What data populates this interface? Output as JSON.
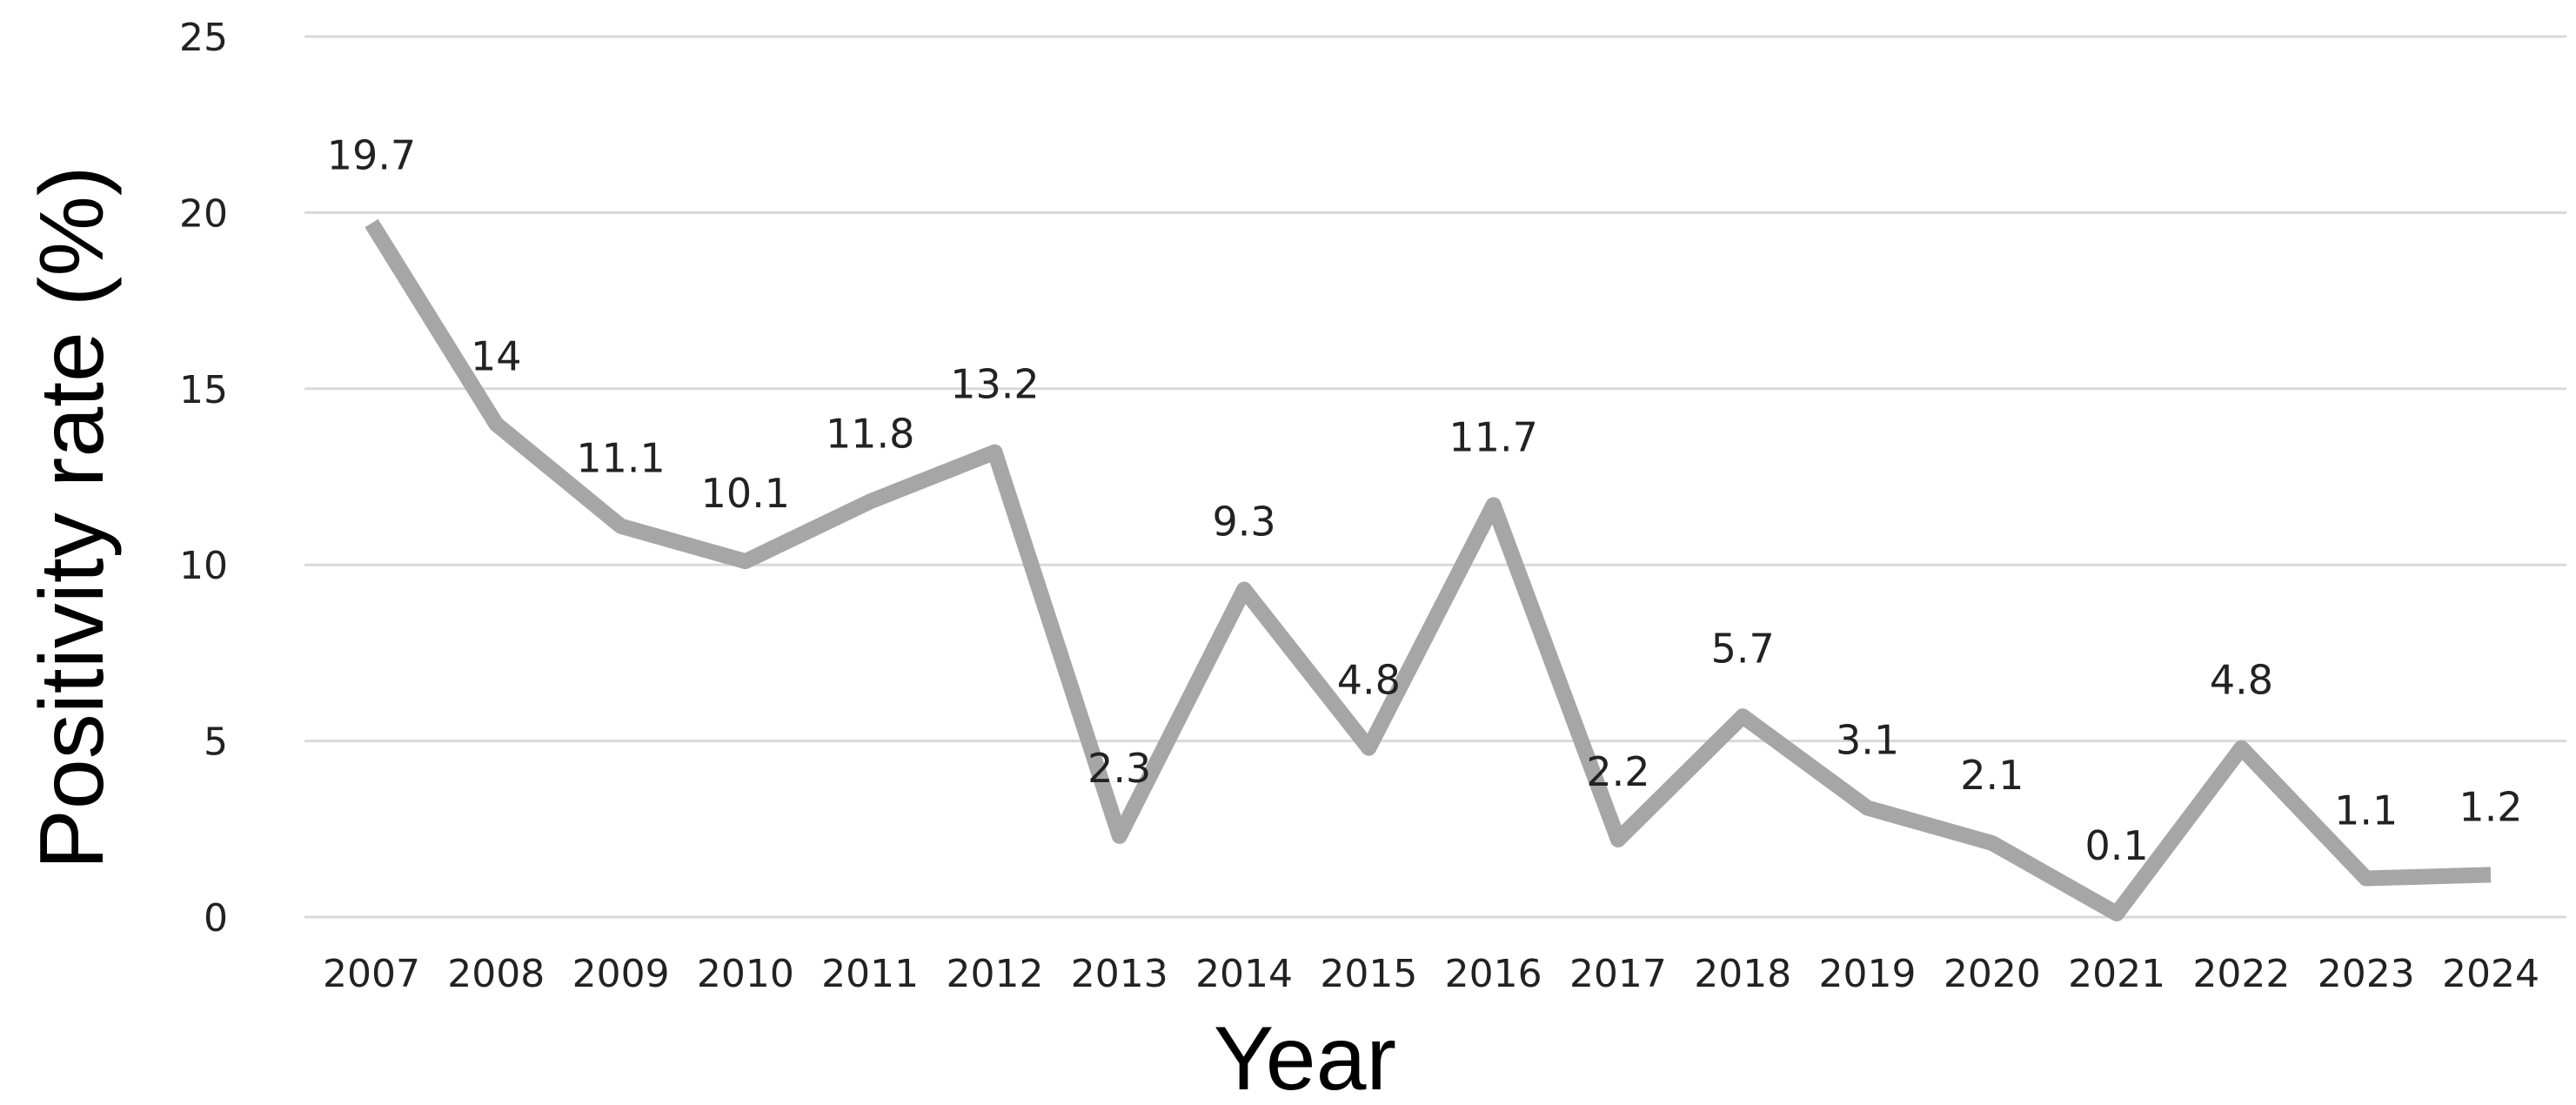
{
  "chart_data": {
    "type": "line",
    "title": "",
    "xlabel": "Year",
    "ylabel": "Positivity rate (%)",
    "ylim": [
      0,
      25
    ],
    "yticks": [
      0,
      5,
      10,
      15,
      20,
      25
    ],
    "grid": "horizontal",
    "legend": "none",
    "line_color": "#a6a6a6",
    "grid_color": "#d9d9d9",
    "categories": [
      "2007",
      "2008",
      "2009",
      "2010",
      "2011",
      "2012",
      "2013",
      "2014",
      "2015",
      "2016",
      "2017",
      "2018",
      "2019",
      "2020",
      "2021",
      "2022",
      "2023",
      "2024"
    ],
    "series": [
      {
        "values": [
          19.7,
          14,
          11.1,
          10.1,
          11.8,
          13.2,
          2.3,
          9.3,
          4.8,
          11.7,
          2.2,
          5.7,
          3.1,
          2.1,
          0.1,
          4.8,
          1.1,
          1.2
        ],
        "labels": [
          "19.7",
          "14",
          "11.1",
          "10.1",
          "11.8",
          "13.2",
          "2.3",
          "9.3",
          "4.8",
          "11.7",
          "2.2",
          "5.7",
          "3.1",
          "2.1",
          "0.1",
          "4.8",
          "1.1",
          "1.2"
        ]
      }
    ]
  }
}
